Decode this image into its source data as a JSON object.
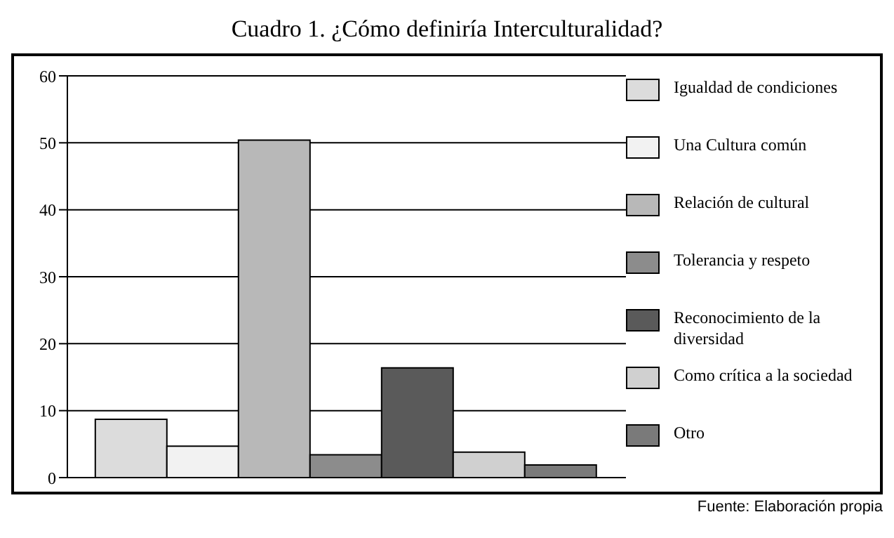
{
  "chart_data": {
    "type": "bar",
    "title": "Cuadro 1. ¿Cómo definiría Interculturalidad?",
    "categories": [
      null
    ],
    "series": [
      {
        "name": "Igualdad de condiciones",
        "color": "#dcdcdc",
        "values": [
          8.7
        ]
      },
      {
        "name": "Una Cultura común",
        "color": "#f2f2f2",
        "values": [
          4.7
        ]
      },
      {
        "name": "Relación de cultural",
        "color": "#b8b8b8",
        "values": [
          50.4
        ]
      },
      {
        "name": "Tolerancia y respeto",
        "color": "#8c8c8c",
        "values": [
          3.4
        ]
      },
      {
        "name": "Reconocimiento de la diversidad",
        "color": "#5a5a5a",
        "values": [
          16.4
        ]
      },
      {
        "name": "Como crítica a la sociedad",
        "color": "#d0d0d0",
        "values": [
          3.8
        ]
      },
      {
        "name": "Otro",
        "color": "#7a7a7a",
        "values": [
          1.9
        ]
      }
    ],
    "ylim": [
      0,
      60
    ],
    "yticks": [
      0,
      10,
      20,
      30,
      40,
      50,
      60
    ],
    "grid": "y",
    "legend": "right",
    "tick_labels": "y",
    "annotations": [
      "Fuente: Elaboración propia"
    ]
  }
}
